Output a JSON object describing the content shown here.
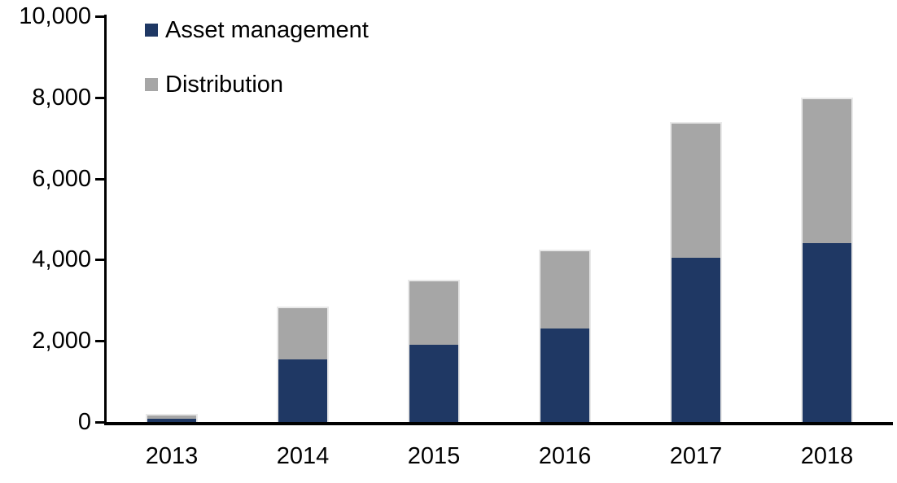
{
  "chart_data": {
    "type": "bar",
    "stacked": true,
    "title": "",
    "categories": [
      "2013",
      "2014",
      "2015",
      "2016",
      "2017",
      "2018"
    ],
    "series": [
      {
        "name": "Asset management",
        "color": "#1f3864",
        "values": [
          75,
          1550,
          1900,
          2300,
          4050,
          4400
        ]
      },
      {
        "name": "Distribution",
        "color": "#a6a6a6",
        "values": [
          125,
          1300,
          1600,
          1950,
          3350,
          3600
        ]
      }
    ],
    "totals": [
      200,
      2850,
      3500,
      4250,
      7400,
      8000
    ],
    "xlabel": "",
    "ylabel": "",
    "ylim": [
      0,
      10000
    ],
    "y_ticks": [
      {
        "value": 0,
        "label": "0"
      },
      {
        "value": 2000,
        "label": "2,000"
      },
      {
        "value": 4000,
        "label": "4,000"
      },
      {
        "value": 6000,
        "label": "6,000"
      },
      {
        "value": 8000,
        "label": "8,000"
      },
      {
        "value": 10000,
        "label": "10,000"
      }
    ],
    "grid": false,
    "legend_position": "top-left",
    "colors": {
      "axis": "#000000",
      "background": "#ffffff",
      "bar_outline": "#e9e9e9",
      "text": "#000000"
    }
  }
}
